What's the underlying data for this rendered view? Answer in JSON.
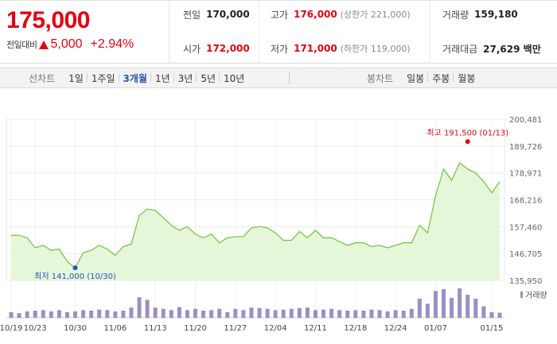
{
  "quote": {
    "price": "175,000",
    "change_label": "전일대비",
    "change": "5,000",
    "change_pct": "+2.94%",
    "prev_close_label": "전일",
    "prev_close": "170,000",
    "high_label": "고가",
    "high": "176,000",
    "upper_limit": "(상한가 221,000)",
    "volume_label": "거래량",
    "volume": "159,180",
    "open_label": "시가",
    "open": "172,000",
    "low_label": "저가",
    "low": "171,000",
    "lower_limit": "(하한가 119,000)",
    "amount_label": "거래대금",
    "amount": "27,629 백만"
  },
  "tabs": {
    "line_head": "선차트",
    "line_items": [
      "1일",
      "1주일",
      "3개월",
      "1년",
      "3년",
      "5년",
      "10년"
    ],
    "active": "3개월",
    "candle_head": "봉차트",
    "candle_items": [
      "일봉",
      "주봉",
      "월봉"
    ]
  },
  "colors": {
    "up": "#e60012",
    "low_marker": "#1a5bb8",
    "line": "#6cc53a",
    "area": "#e6f6d8",
    "volume": "#9b8ec4"
  },
  "chart_data": {
    "type": "area",
    "y_ticks": [
      "200,481",
      "189,726",
      "178,971",
      "168,216",
      "157,460",
      "146,705",
      "135,950"
    ],
    "ylim": [
      135950,
      200481
    ],
    "x_ticks": [
      "10/19",
      "10/23",
      "10/30",
      "11/06",
      "11/13",
      "11/20",
      "11/27",
      "12/04",
      "12/11",
      "12/18",
      "12/24",
      "01/07",
      "01/15"
    ],
    "x_tick_index": [
      0,
      3,
      8,
      13,
      18,
      23,
      28,
      33,
      38,
      43,
      48,
      53,
      60
    ],
    "close": [
      154000,
      154000,
      153000,
      149000,
      150000,
      148000,
      148500,
      143500,
      141000,
      147000,
      148000,
      150000,
      148500,
      146000,
      149500,
      150500,
      162000,
      164500,
      164000,
      161000,
      158000,
      156000,
      157500,
      154500,
      153000,
      154500,
      151000,
      153000,
      153500,
      153500,
      157000,
      157500,
      157000,
      155000,
      152000,
      152000,
      155500,
      153000,
      156000,
      153000,
      153000,
      151500,
      150000,
      151000,
      151000,
      149500,
      150000,
      149000,
      150000,
      151000,
      151000,
      158000,
      155000,
      170000,
      180500,
      176000,
      183000,
      180500,
      179000,
      175500,
      171000,
      175500
    ],
    "volume": [
      22,
      18,
      25,
      28,
      30,
      25,
      30,
      22,
      25,
      30,
      28,
      32,
      30,
      25,
      28,
      40,
      80,
      70,
      40,
      35,
      30,
      42,
      30,
      35,
      28,
      30,
      35,
      22,
      35,
      30,
      40,
      38,
      35,
      30,
      32,
      35,
      38,
      40,
      30,
      32,
      35,
      30,
      28,
      30,
      28,
      32,
      30,
      25,
      30,
      28,
      35,
      75,
      55,
      105,
      112,
      78,
      115,
      90,
      75,
      45,
      22,
      20
    ],
    "high_note": {
      "label": "최고 191,500 (01/13)",
      "index": 57,
      "value": 191500
    },
    "low_note": {
      "label": "최저 141,000 (10/30)",
      "index": 8,
      "value": 141000
    },
    "volume_legend": "거래량"
  }
}
